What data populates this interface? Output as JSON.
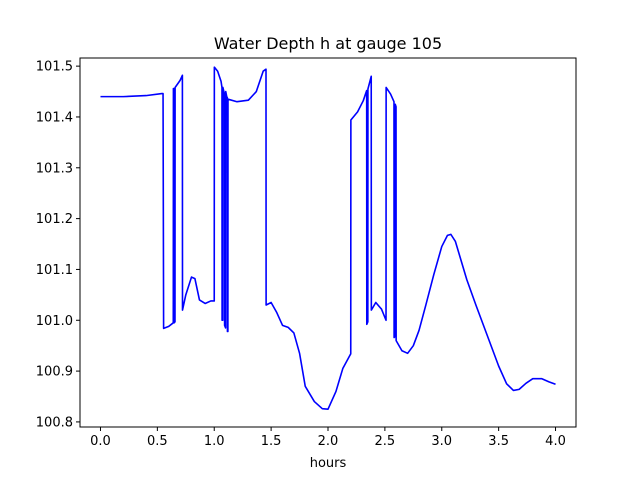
{
  "chart_data": {
    "type": "line",
    "title": "Water Depth h at gauge 105",
    "xlabel": "hours",
    "ylabel": "",
    "xlim": [
      -0.18,
      4.18
    ],
    "ylim": [
      100.79,
      101.516
    ],
    "xticks": [
      0.0,
      0.5,
      1.0,
      1.5,
      2.0,
      2.5,
      3.0,
      3.5,
      4.0
    ],
    "xtick_labels": [
      "0.0",
      "0.5",
      "1.0",
      "1.5",
      "2.0",
      "2.5",
      "3.0",
      "3.5",
      "4.0"
    ],
    "yticks": [
      100.8,
      100.9,
      101.0,
      101.1,
      101.2,
      101.3,
      101.4,
      101.5
    ],
    "ytick_labels": [
      "100.8",
      "100.9",
      "101.0",
      "101.1",
      "101.2",
      "101.3",
      "101.4",
      "101.5"
    ],
    "grid": false,
    "color": "#0000ff",
    "series": [
      {
        "points": [
          [
            0.0,
            101.44
          ],
          [
            0.2,
            101.44
          ],
          [
            0.4,
            101.442
          ],
          [
            0.54,
            101.446
          ],
          [
            0.55,
            101.446
          ],
          [
            0.555,
            100.984
          ],
          [
            0.6,
            100.988
          ],
          [
            0.64,
            100.995
          ],
          [
            0.641,
            101.456
          ],
          [
            0.646,
            101.456
          ],
          [
            0.647,
            100.995
          ],
          [
            0.655,
            100.997
          ],
          [
            0.656,
            101.458
          ],
          [
            0.7,
            101.472
          ],
          [
            0.72,
            101.482
          ],
          [
            0.721,
            101.02
          ],
          [
            0.75,
            101.05
          ],
          [
            0.8,
            101.085
          ],
          [
            0.83,
            101.082
          ],
          [
            0.87,
            101.04
          ],
          [
            0.92,
            101.033
          ],
          [
            0.97,
            101.038
          ],
          [
            1.0,
            101.038
          ],
          [
            1.001,
            101.498
          ],
          [
            1.03,
            101.49
          ],
          [
            1.06,
            101.47
          ],
          [
            1.068,
            101.458
          ],
          [
            1.069,
            101.0
          ],
          [
            1.075,
            101.0
          ],
          [
            1.076,
            101.458
          ],
          [
            1.09,
            101.445
          ],
          [
            1.091,
            100.99
          ],
          [
            1.1,
            100.985
          ],
          [
            1.101,
            101.45
          ],
          [
            1.11,
            101.44
          ],
          [
            1.115,
            101.438
          ],
          [
            1.116,
            100.978
          ],
          [
            1.12,
            100.978
          ],
          [
            1.121,
            101.435
          ],
          [
            1.2,
            101.43
          ],
          [
            1.3,
            101.433
          ],
          [
            1.37,
            101.45
          ],
          [
            1.43,
            101.49
          ],
          [
            1.455,
            101.494
          ],
          [
            1.456,
            101.03
          ],
          [
            1.5,
            101.035
          ],
          [
            1.55,
            101.015
          ],
          [
            1.6,
            100.99
          ],
          [
            1.65,
            100.986
          ],
          [
            1.7,
            100.975
          ],
          [
            1.75,
            100.935
          ],
          [
            1.8,
            100.87
          ],
          [
            1.88,
            100.84
          ],
          [
            1.95,
            100.826
          ],
          [
            2.0,
            100.825
          ],
          [
            2.07,
            100.86
          ],
          [
            2.13,
            100.905
          ],
          [
            2.19,
            100.93
          ],
          [
            2.2,
            100.934
          ],
          [
            2.201,
            101.394
          ],
          [
            2.26,
            101.41
          ],
          [
            2.31,
            101.432
          ],
          [
            2.34,
            101.452
          ],
          [
            2.341,
            100.992
          ],
          [
            2.35,
            100.997
          ],
          [
            2.351,
            101.455
          ],
          [
            2.38,
            101.48
          ],
          [
            2.381,
            101.02
          ],
          [
            2.42,
            101.035
          ],
          [
            2.47,
            101.022
          ],
          [
            2.51,
            101.0
          ],
          [
            2.511,
            101.458
          ],
          [
            2.55,
            101.445
          ],
          [
            2.58,
            101.43
          ],
          [
            2.581,
            100.966
          ],
          [
            2.59,
            100.968
          ],
          [
            2.591,
            101.425
          ],
          [
            2.598,
            101.42
          ],
          [
            2.599,
            100.96
          ],
          [
            2.65,
            100.94
          ],
          [
            2.7,
            100.935
          ],
          [
            2.75,
            100.95
          ],
          [
            2.8,
            100.98
          ],
          [
            2.86,
            101.03
          ],
          [
            2.93,
            101.09
          ],
          [
            3.0,
            101.145
          ],
          [
            3.05,
            101.167
          ],
          [
            3.08,
            101.169
          ],
          [
            3.12,
            101.155
          ],
          [
            3.16,
            101.125
          ],
          [
            3.22,
            101.08
          ],
          [
            3.3,
            101.03
          ],
          [
            3.4,
            100.97
          ],
          [
            3.5,
            100.91
          ],
          [
            3.57,
            100.875
          ],
          [
            3.63,
            100.862
          ],
          [
            3.68,
            100.864
          ],
          [
            3.74,
            100.876
          ],
          [
            3.8,
            100.885
          ],
          [
            3.88,
            100.885
          ],
          [
            3.94,
            100.879
          ],
          [
            4.0,
            100.874
          ]
        ]
      }
    ]
  }
}
